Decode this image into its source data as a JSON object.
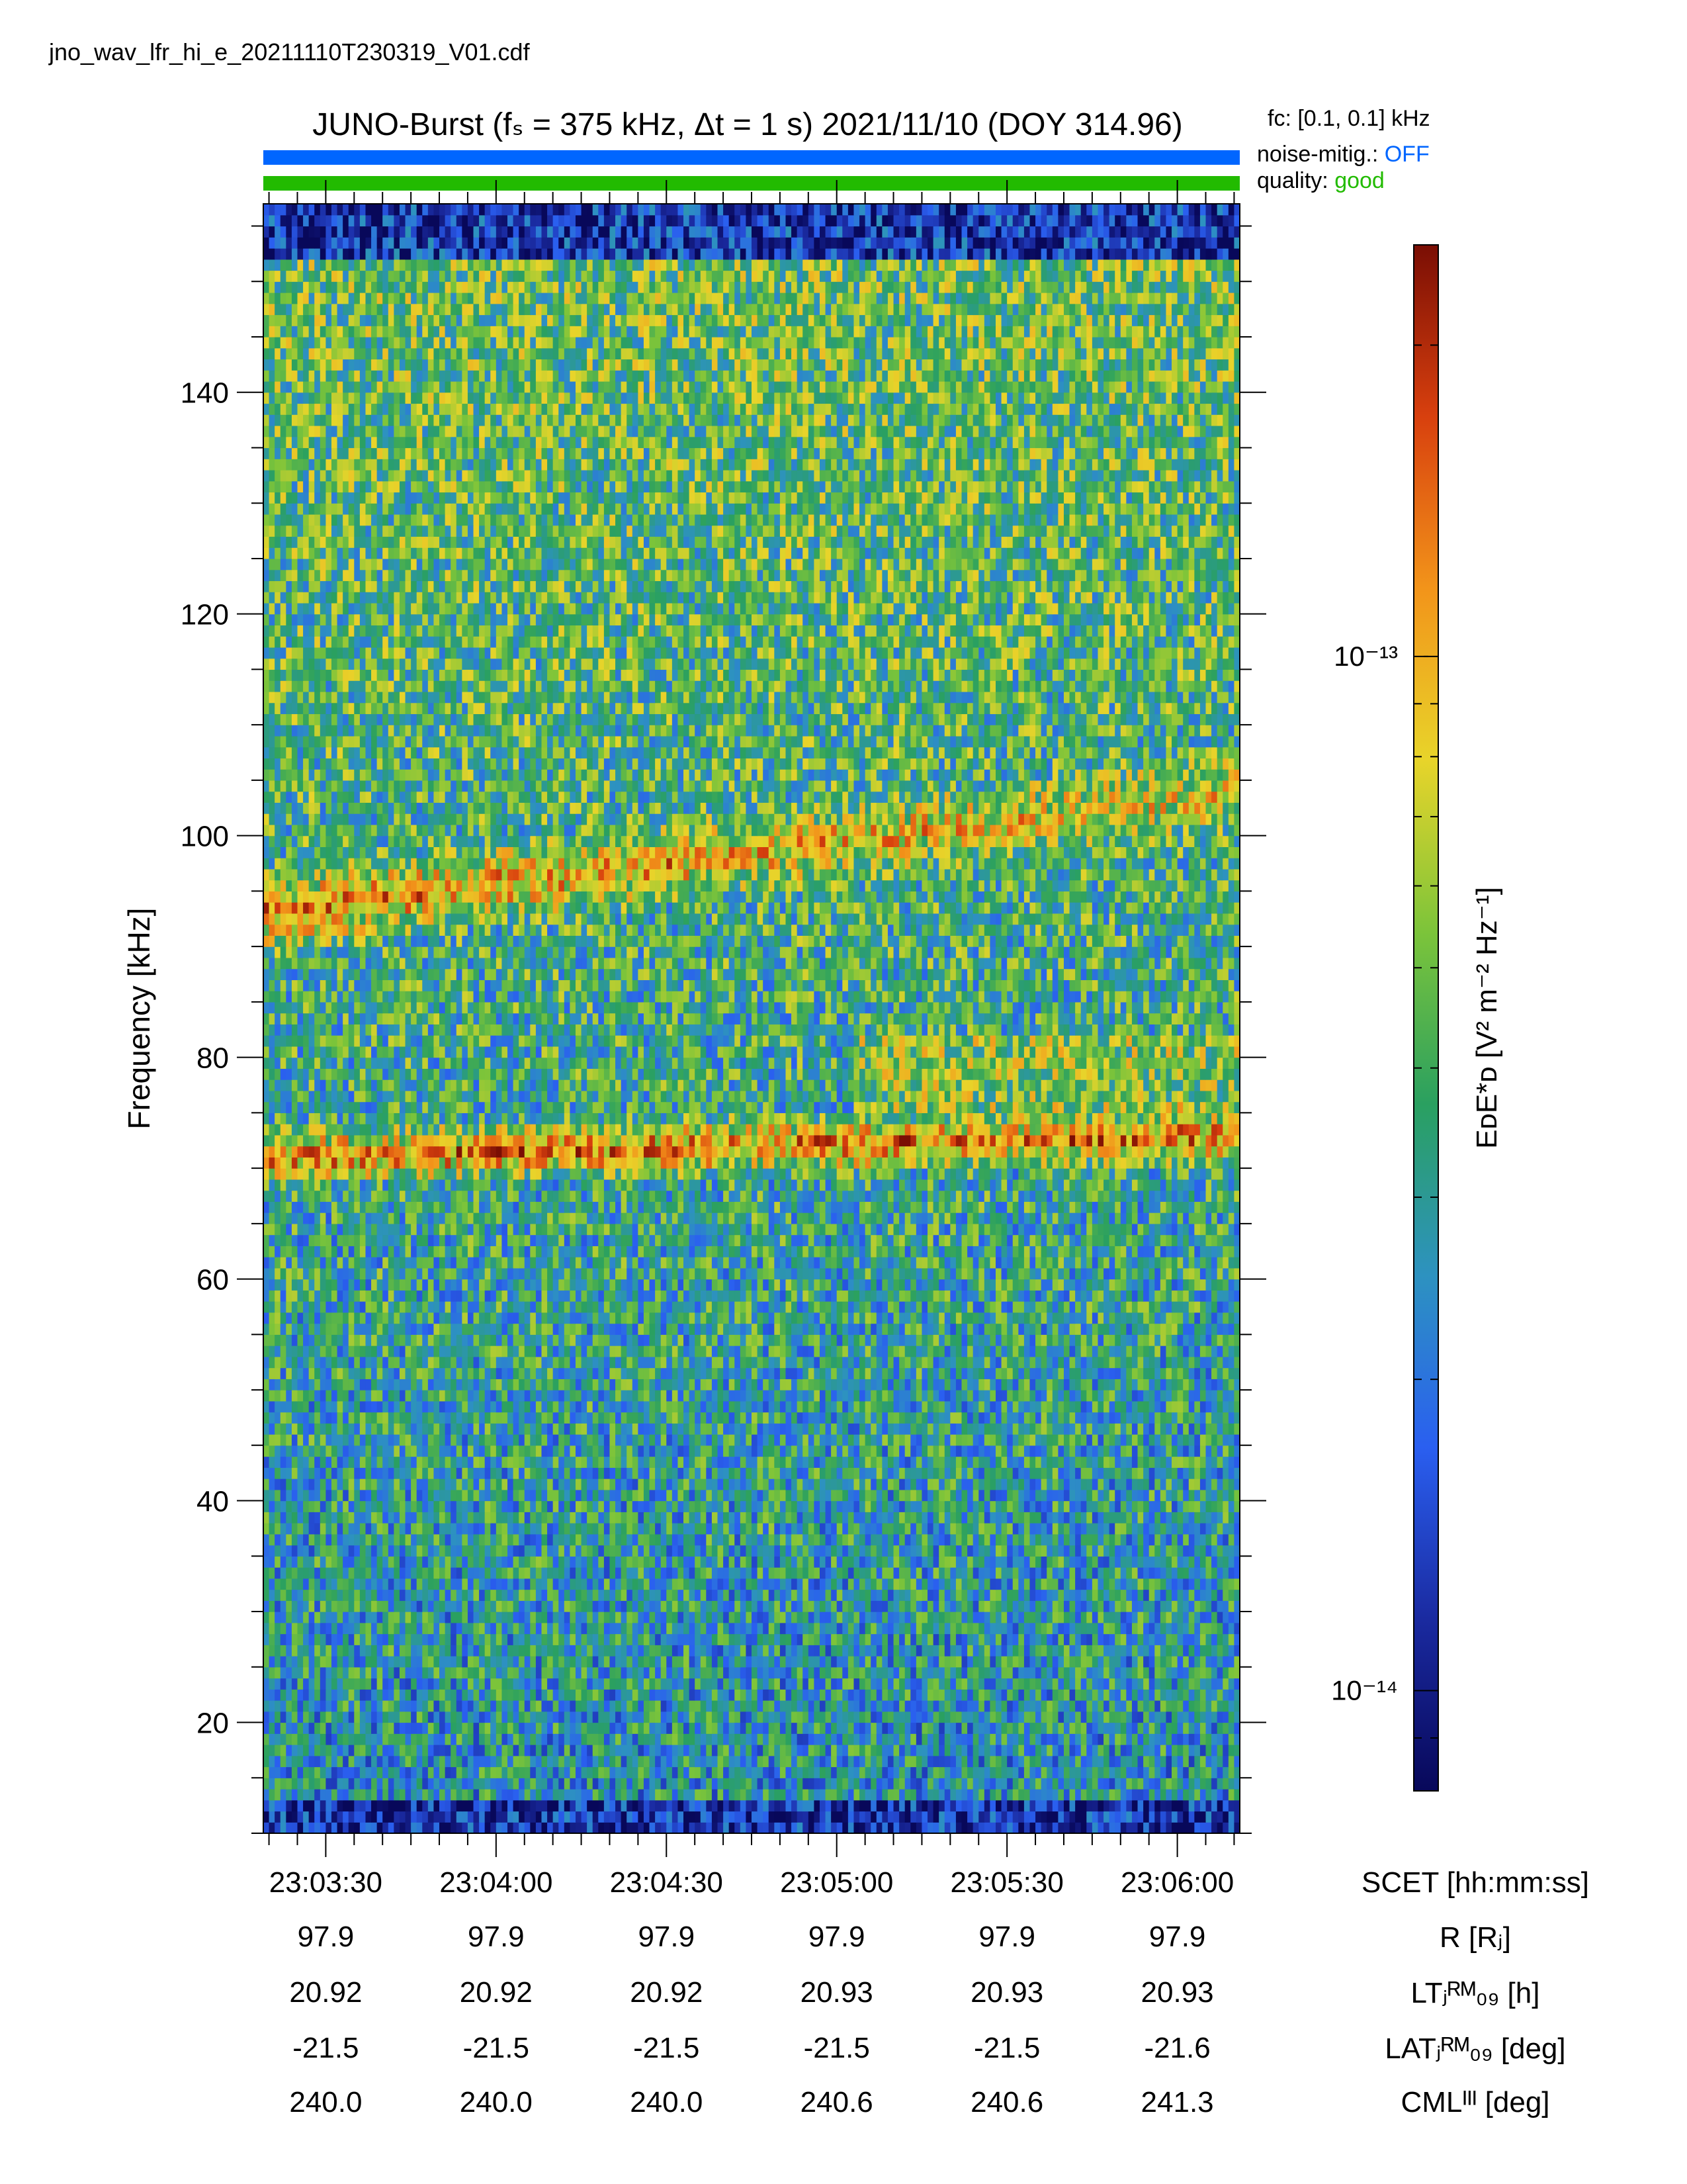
{
  "filename": "jno_wav_lfr_hi_e_20211110T230319_V01.cdf",
  "title": "JUNO-Burst (fₛ = 375 kHz, Δt = 1 s)  2021/11/10 (DOY 314.96)",
  "flags": {
    "fc_label": "fᴄ: [0.1, 0.1] kHz",
    "noise_label": "noise-mitig.:",
    "noise_value": "OFF",
    "noise_color": "#0066ff",
    "quality_label": "quality:",
    "quality_value": "good",
    "quality_color": "#22bb00"
  },
  "chart_data": {
    "type": "heatmap",
    "ylabel": "Frequency [kHz]",
    "ylim": [
      10,
      157
    ],
    "yticks": [
      20,
      40,
      60,
      80,
      100,
      120,
      140
    ],
    "x_time_range": [
      "23:03:19",
      "23:06:11"
    ],
    "xticks": [
      "23:03:30",
      "23:04:00",
      "23:04:30",
      "23:05:00",
      "23:05:30",
      "23:06:00"
    ],
    "colorbar": {
      "label": "EᴅE*ᴅ [V² m⁻² Hz⁻¹]",
      "scale": "log",
      "range": [
        8e-15,
        2.5e-13
      ],
      "tick_labels": [
        "10⁻¹³",
        "10⁻¹⁴"
      ],
      "tick_values": [
        1e-13,
        1e-14
      ],
      "colormap": [
        "#08085a",
        "#1a2aa0",
        "#2a5ff0",
        "#2d92c0",
        "#2aa060",
        "#7cc43a",
        "#e8d42a",
        "#f2941a",
        "#d8400e",
        "#7a0e04"
      ]
    },
    "features": [
      {
        "name": "band",
        "freq_start_khz": 93,
        "freq_end_khz": 104,
        "intensity": "high"
      },
      {
        "name": "band",
        "freq_start_khz": 71,
        "freq_end_khz": 73,
        "intensity": "high"
      }
    ],
    "ephemeris": {
      "headers": [
        "SCET [hh:mm:ss]",
        "R [Rⱼ]",
        "LTⱼᴿᴹ₀₉ [h]",
        "LATⱼᴿᴹ₀₉ [deg]",
        "CMLᴵᴵᴵ [deg]"
      ],
      "R": [
        "97.9",
        "97.9",
        "97.9",
        "97.9",
        "97.9",
        "97.9"
      ],
      "LT": [
        "20.92",
        "20.92",
        "20.92",
        "20.93",
        "20.93",
        "20.93"
      ],
      "LAT": [
        "-21.5",
        "-21.5",
        "-21.5",
        "-21.5",
        "-21.5",
        "-21.6"
      ],
      "CML": [
        "240.0",
        "240.0",
        "240.0",
        "240.6",
        "240.6",
        "241.3"
      ]
    }
  }
}
